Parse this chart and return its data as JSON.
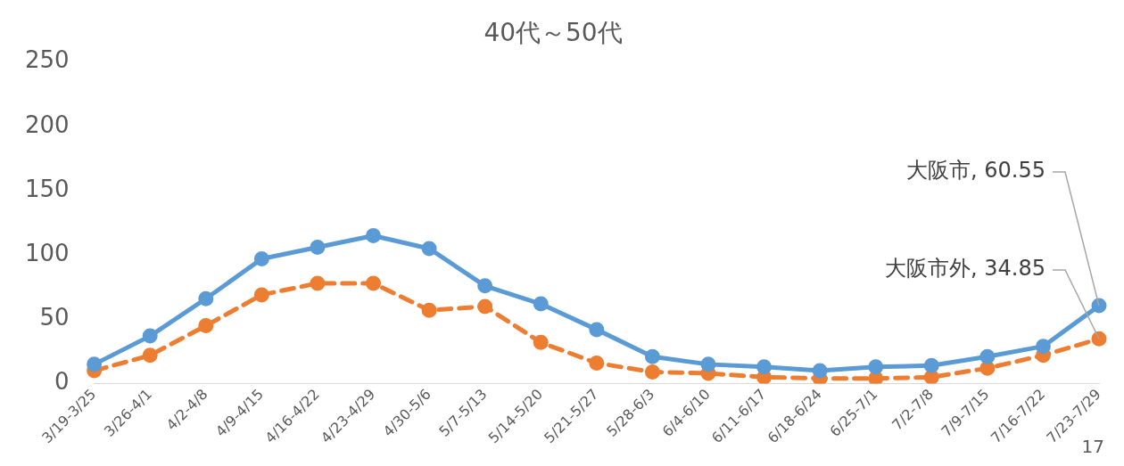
{
  "chart_data": {
    "type": "line",
    "title": "40代～50代",
    "categories": [
      "3/19-3/25",
      "3/26-4/1",
      "4/2-4/8",
      "4/9-4/15",
      "4/16-4/22",
      "4/23-4/29",
      "4/30-5/6",
      "5/7-5/13",
      "5/14-5/20",
      "5/21-5/27",
      "5/28-6/3",
      "6/4-6/10",
      "6/11-6/17",
      "6/18-6/24",
      "6/25-7/1",
      "7/2-7/8",
      "7/9-7/15",
      "7/16-7/22",
      "7/23-7/29"
    ],
    "series": [
      {
        "color": "#5b9bd5",
        "line_style": "solid",
        "values": [
          15,
          37,
          66,
          97,
          106,
          115,
          105,
          76,
          62,
          42,
          21,
          15,
          13,
          10,
          13,
          14,
          21,
          29,
          60.55
        ],
        "value_labels": [
          null,
          null,
          null,
          null,
          null,
          null,
          null,
          null,
          null,
          null,
          null,
          null,
          null,
          null,
          null,
          null,
          null,
          null,
          "大阪市, 60.55"
        ]
      },
      {
        "color": "#ed7d31",
        "line_style": "dashed",
        "values": [
          10,
          22,
          45,
          69,
          78,
          78,
          57,
          60,
          32,
          16,
          9,
          8,
          5,
          4,
          4,
          5,
          12,
          22,
          34.85
        ],
        "value_labels": [
          null,
          null,
          null,
          null,
          null,
          null,
          null,
          null,
          null,
          null,
          null,
          null,
          null,
          null,
          null,
          null,
          null,
          null,
          "大阪市外, 34.85"
        ]
      }
    ],
    "ylim": [
      0,
      250
    ],
    "yticks": [
      0,
      50,
      100,
      150,
      200,
      250
    ],
    "grid": false,
    "legend": false,
    "marker": "circle",
    "annotations": [
      "17"
    ]
  }
}
